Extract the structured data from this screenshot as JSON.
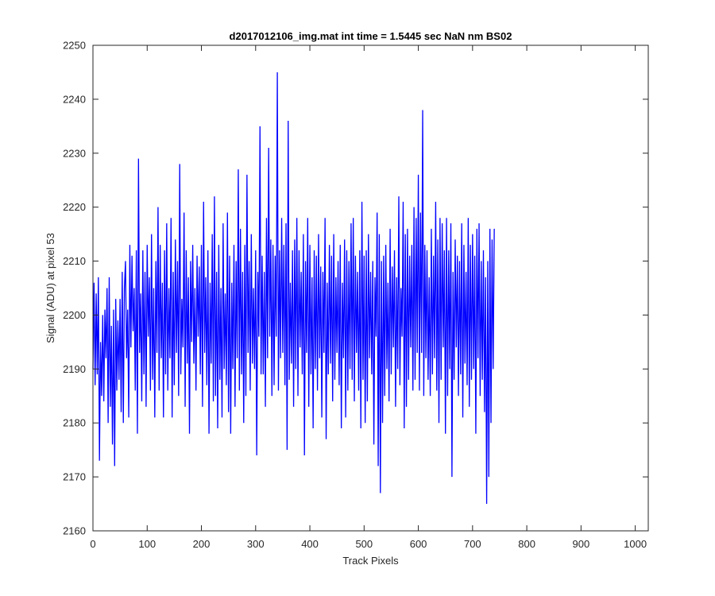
{
  "chart_data": {
    "type": "line",
    "title": "d2017012106_img.mat int time = 1.5445 sec  NaN nm BS02",
    "xlabel": "Track Pixels",
    "ylabel": "Signal (ADU) at pixel 53",
    "xlim": [
      0,
      1024
    ],
    "ylim": [
      2160,
      2250
    ],
    "xticks": [
      0,
      100,
      200,
      300,
      400,
      500,
      600,
      700,
      800,
      900,
      1000
    ],
    "yticks": [
      2160,
      2170,
      2180,
      2190,
      2200,
      2210,
      2220,
      2230,
      2240,
      2250
    ],
    "grid": false,
    "legend": "none",
    "series": [
      {
        "color": "#0000ff",
        "x_start": 0,
        "x_step": 2,
        "values": [
          2190,
          2206,
          2187,
          2204,
          2189,
          2207,
          2173,
          2195,
          2185,
          2200,
          2184,
          2201,
          2192,
          2205,
          2180,
          2207,
          2183,
          2198,
          2176,
          2201,
          2172,
          2203,
          2186,
          2199,
          2188,
          2203,
          2182,
          2208,
          2180,
          2205,
          2210,
          2192,
          2201,
          2181,
          2213,
          2194,
          2211,
          2197,
          2205,
          2186,
          2212,
          2178,
          2229,
          2193,
          2204,
          2184,
          2212,
          2189,
          2208,
          2183,
          2213,
          2196,
          2207,
          2186,
          2215,
          2188,
          2205,
          2181,
          2210,
          2193,
          2220,
          2186,
          2213,
          2192,
          2206,
          2181,
          2212,
          2189,
          2217,
          2186,
          2205,
          2192,
          2218,
          2181,
          2208,
          2187,
          2214,
          2193,
          2210,
          2185,
          2228,
          2189,
          2203,
          2194,
          2219,
          2183,
          2212,
          2191,
          2207,
          2178,
          2210,
          2195,
          2213,
          2191,
          2205,
          2186,
          2211,
          2196,
          2209,
          2189,
          2213,
          2183,
          2221,
          2193,
          2207,
          2187,
          2212,
          2178,
          2206,
          2191,
          2215,
          2184,
          2222,
          2185,
          2208,
          2179,
          2213,
          2188,
          2205,
          2181,
          2217,
          2190,
          2204,
          2187,
          2219,
          2182,
          2211,
          2178,
          2206,
          2190,
          2213,
          2183,
          2210,
          2192,
          2227,
          2186,
          2216,
          2189,
          2208,
          2180,
          2213,
          2185,
          2226,
          2193,
          2210,
          2186,
          2215,
          2191,
          2205,
          2190,
          2212,
          2174,
          2208,
          2196,
          2235,
          2189,
          2211,
          2189,
          2208,
          2183,
          2218,
          2192,
          2231,
          2196,
          2214,
          2185,
          2213,
          2187,
          2211,
          2196,
          2245,
          2186,
          2212,
          2192,
          2218,
          2193,
          2213,
          2187,
          2217,
          2175,
          2236,
          2188,
          2206,
          2191,
          2212,
          2183,
          2214,
          2190,
          2218,
          2185,
          2212,
          2194,
          2208,
          2189,
          2215,
          2174,
          2210,
          2193,
          2218,
          2183,
          2213,
          2189,
          2207,
          2179,
          2212,
          2190,
          2211,
          2186,
          2215,
          2192,
          2209,
          2181,
          2208,
          2193,
          2218,
          2177,
          2206,
          2189,
          2213,
          2191,
          2211,
          2184,
          2215,
          2188,
          2207,
          2193,
          2210,
          2187,
          2213,
          2179,
          2206,
          2192,
          2214,
          2181,
          2212,
          2186,
          2210,
          2190,
          2217,
          2188,
          2218,
          2184,
          2211,
          2193,
          2208,
          2186,
          2212,
          2179,
          2221,
          2188,
          2211,
          2180,
          2212,
          2184,
          2215,
          2192,
          2208,
          2189,
          2210,
          2176,
          2207,
          2196,
          2219,
          2172,
          2215,
          2167,
          2210,
          2180,
          2211,
          2185,
          2213,
          2190,
          2206,
          2184,
          2216,
          2189,
          2209,
          2194,
          2212,
          2183,
          2207,
          2190,
          2222,
          2187,
          2205,
          2196,
          2221,
          2179,
          2215,
          2183,
          2216,
          2188,
          2211,
          2194,
          2213,
          2186,
          2220,
          2188,
          2218,
          2193,
          2226,
          2186,
          2219,
          2193,
          2238,
          2185,
          2213,
          2192,
          2212,
          2188,
          2207,
          2185,
          2216,
          2189,
          2211,
          2192,
          2221,
          2186,
          2214,
          2180,
          2218,
          2188,
          2217,
          2194,
          2212,
          2178,
          2218,
          2185,
          2212,
          2190,
          2217,
          2170,
          2208,
          2188,
          2214,
          2194,
          2211,
          2185,
          2210,
          2189,
          2217,
          2181,
          2213,
          2191,
          2208,
          2187,
          2218,
          2183,
          2213,
          2188,
          2215,
          2190,
          2211,
          2178,
          2216,
          2192,
          2217,
          2185,
          2210,
          2188,
          2212,
          2182,
          2207,
          2165,
          2210,
          2170,
          2216,
          2180,
          2214,
          2190,
          2216
        ]
      }
    ]
  }
}
